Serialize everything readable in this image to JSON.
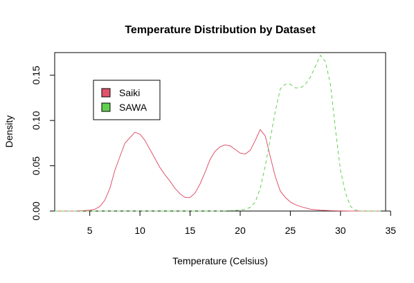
{
  "chart_data": {
    "type": "line",
    "title": "Temperature Distribution by Dataset",
    "xlabel": "Temperature (Celsius)",
    "ylabel": "Density",
    "xlim": [
      1.5,
      34.5
    ],
    "ylim": [
      0,
      0.175
    ],
    "xticks": [
      5,
      10,
      15,
      20,
      25,
      30,
      35
    ],
    "yticks": [
      0.0,
      0.05,
      0.1,
      0.15
    ],
    "xtick_labels": [
      "5",
      "10",
      "15",
      "20",
      "25",
      "30",
      "35"
    ],
    "ytick_labels": [
      "0.00",
      "0.05",
      "0.10",
      "0.15"
    ],
    "grid": false,
    "legend": {
      "position": "top-left",
      "entries": [
        "Saiki",
        "SAWA"
      ]
    },
    "colors": {
      "Saiki": "#DF536B",
      "SAWA": "#61D04F"
    },
    "series": [
      {
        "name": "Saiki",
        "line_style": "solid",
        "x": [
          1.5,
          2.5,
          3.5,
          4.5,
          5.0,
          5.5,
          6.0,
          6.5,
          7.0,
          7.5,
          8.0,
          8.5,
          9.0,
          9.5,
          10.0,
          10.5,
          11.0,
          11.5,
          12.0,
          12.5,
          13.0,
          13.5,
          14.0,
          14.5,
          15.0,
          15.5,
          16.0,
          16.5,
          17.0,
          17.5,
          18.0,
          18.5,
          19.0,
          19.5,
          20.0,
          20.5,
          21.0,
          21.5,
          22.0,
          22.5,
          23.0,
          23.5,
          24.0,
          24.5,
          25.0,
          25.5,
          26.0,
          27.0,
          28.0,
          29.0,
          30.0,
          31.0,
          32.0,
          33.0,
          34.0
        ],
        "y": [
          0.0,
          0.0,
          0.0,
          0.0005,
          0.001,
          0.002,
          0.005,
          0.012,
          0.025,
          0.045,
          0.06,
          0.075,
          0.081,
          0.087,
          0.085,
          0.078,
          0.068,
          0.058,
          0.048,
          0.04,
          0.033,
          0.025,
          0.019,
          0.015,
          0.015,
          0.02,
          0.03,
          0.043,
          0.057,
          0.066,
          0.071,
          0.073,
          0.072,
          0.068,
          0.064,
          0.063,
          0.067,
          0.078,
          0.09,
          0.083,
          0.06,
          0.038,
          0.022,
          0.015,
          0.01,
          0.007,
          0.005,
          0.002,
          0.001,
          0.0005,
          0.0002,
          0.0,
          0.0,
          0.0,
          0.0
        ]
      },
      {
        "name": "SAWA",
        "line_style": "dashed",
        "x": [
          1.5,
          5.0,
          10.0,
          15.0,
          18.0,
          19.0,
          20.0,
          20.5,
          21.0,
          21.5,
          22.0,
          22.5,
          23.0,
          23.5,
          24.0,
          24.5,
          25.0,
          25.5,
          26.0,
          26.5,
          27.0,
          27.5,
          28.0,
          28.5,
          29.0,
          29.5,
          30.0,
          30.5,
          31.0,
          31.5,
          32.0,
          33.0,
          34.0
        ],
        "y": [
          0.0,
          0.0,
          0.0,
          0.0,
          0.0,
          0.0005,
          0.001,
          0.002,
          0.004,
          0.01,
          0.025,
          0.05,
          0.08,
          0.11,
          0.135,
          0.14,
          0.14,
          0.136,
          0.136,
          0.14,
          0.148,
          0.16,
          0.172,
          0.165,
          0.14,
          0.09,
          0.045,
          0.02,
          0.005,
          0.001,
          0.0,
          0.0,
          0.0
        ]
      }
    ]
  }
}
